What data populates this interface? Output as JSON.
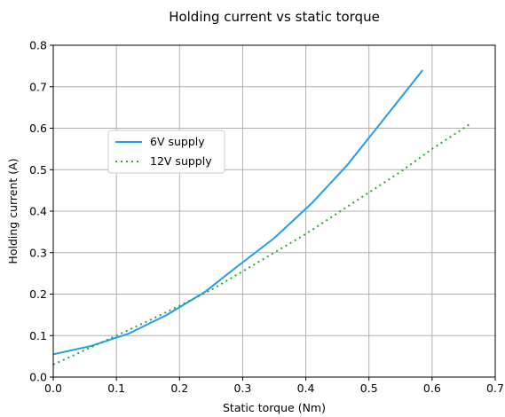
{
  "chart_data": {
    "type": "line",
    "title": "Holding current vs static torque",
    "xlabel": "Static torque (Nm)",
    "ylabel": "Holding current (A)",
    "xlim": [
      0,
      0.7
    ],
    "ylim": [
      0,
      0.8
    ],
    "xticks": [
      "0.0",
      "0.1",
      "0.2",
      "0.3",
      "0.4",
      "0.5",
      "0.6",
      "0.7"
    ],
    "yticks": [
      "0.0",
      "0.1",
      "0.2",
      "0.3",
      "0.4",
      "0.5",
      "0.6",
      "0.7",
      "0.8"
    ],
    "grid": true,
    "legend_position": "upper-left",
    "series": [
      {
        "name": "6V supply",
        "color": "#1f9ee8",
        "style": "solid",
        "points": [
          [
            0.0,
            0.055
          ],
          [
            0.06,
            0.075
          ],
          [
            0.12,
            0.105
          ],
          [
            0.18,
            0.15
          ],
          [
            0.24,
            0.205
          ],
          [
            0.29,
            0.265
          ],
          [
            0.35,
            0.335
          ],
          [
            0.41,
            0.42
          ],
          [
            0.465,
            0.51
          ],
          [
            0.52,
            0.615
          ],
          [
            0.585,
            0.74
          ]
        ]
      },
      {
        "name": "12V supply",
        "color": "#2ca52c",
        "style": "dotted",
        "points": [
          [
            0.0,
            0.03
          ],
          [
            0.05,
            0.065
          ],
          [
            0.1,
            0.1
          ],
          [
            0.15,
            0.135
          ],
          [
            0.2,
            0.172
          ],
          [
            0.25,
            0.21
          ],
          [
            0.3,
            0.255
          ],
          [
            0.35,
            0.3
          ],
          [
            0.4,
            0.345
          ],
          [
            0.45,
            0.395
          ],
          [
            0.5,
            0.445
          ],
          [
            0.55,
            0.495
          ],
          [
            0.6,
            0.55
          ],
          [
            0.66,
            0.61
          ]
        ]
      }
    ]
  }
}
